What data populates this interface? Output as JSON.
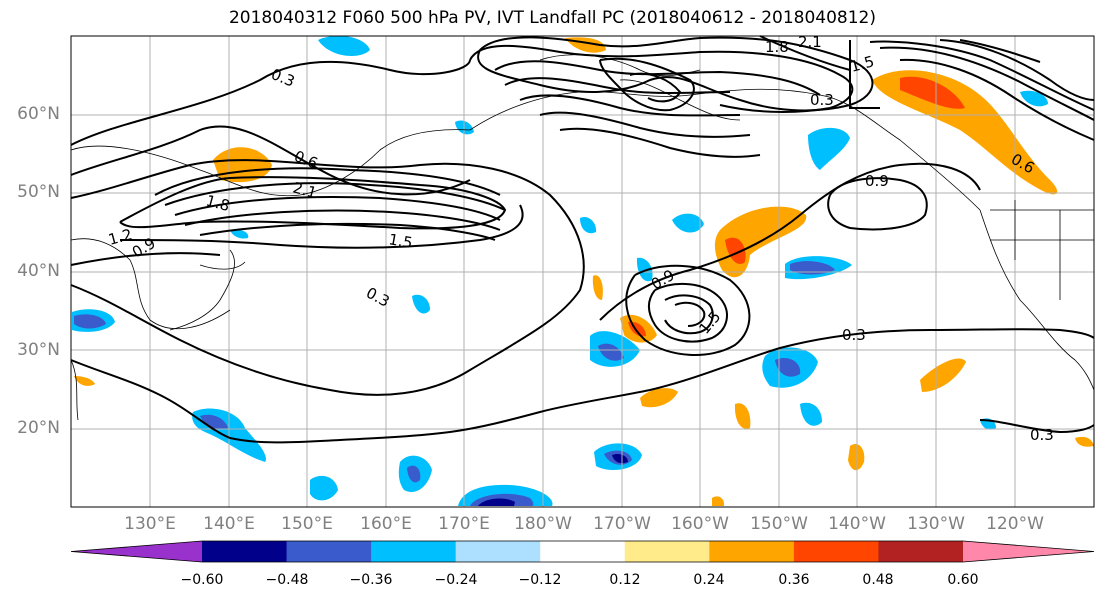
{
  "title": "2018040312 F060 500 hPa PV, IVT Landfall PC (2018040612 - 2018040812)",
  "lat_labels": [
    "60°N",
    "50°N",
    "40°N",
    "30°N",
    "20°N"
  ],
  "lon_labels": [
    "130°E",
    "140°E",
    "150°E",
    "160°E",
    "170°E",
    "180°W",
    "170°W",
    "160°W",
    "150°W",
    "140°W",
    "130°W",
    "120°W"
  ],
  "contour_labels": [
    "0.3",
    "0.6",
    "0.9",
    "1.2",
    "1.5",
    "1.8",
    "2.1",
    "0.3",
    "0.3",
    "0.9",
    "1.5",
    "0.3",
    "0.3",
    "1.8",
    "2.1",
    "1.5",
    "0.6",
    "0.9"
  ],
  "colorbar": {
    "ticks": [
      "−0.60",
      "−0.48",
      "−0.36",
      "−0.24",
      "−0.12",
      "0.12",
      "0.24",
      "0.36",
      "0.48",
      "0.60"
    ],
    "colors": [
      "#9932CC",
      "#00008B",
      "#3A5BCB",
      "#00BFFF",
      "#ADE0FF",
      "#FFFFFF",
      "#FFEB8A",
      "#FFA500",
      "#FF4500",
      "#B22222",
      "#FF88AA"
    ]
  },
  "map": {
    "extent": "120°E – 115°W, 10°N – 70°N",
    "grid": true,
    "coastlines": true
  }
}
